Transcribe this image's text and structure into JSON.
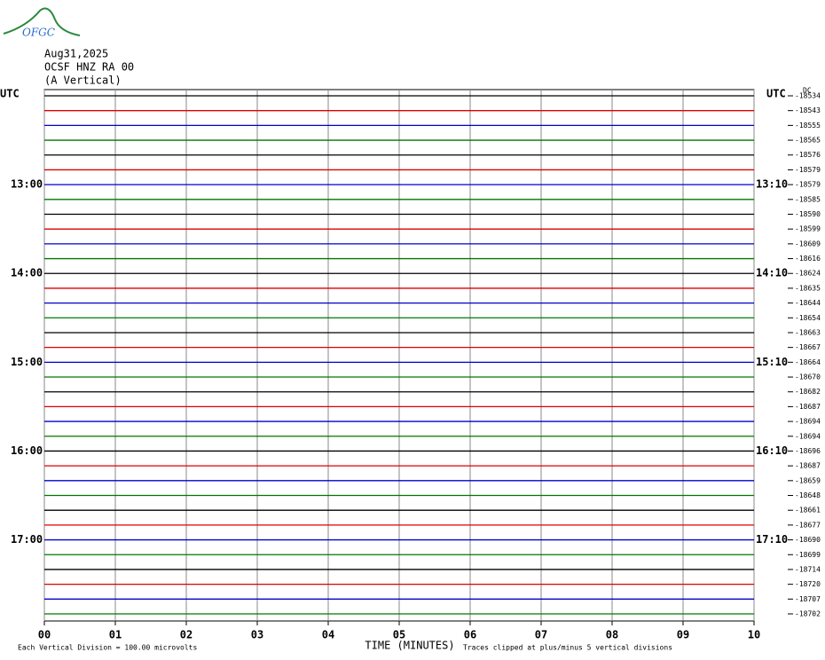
{
  "logo": "OFGC",
  "chart_data": {
    "type": "helicorder",
    "title_lines": [
      "Aug31,2025",
      "OCSF HNZ RA 00",
      "(A Vertical)"
    ],
    "left_header": "UTC",
    "right_header": "UTC",
    "corner_note": "DC",
    "xlabel": "TIME (MINUTES)",
    "xlim": [
      0,
      10
    ],
    "xticks": [
      {
        "value": 0,
        "label": "00"
      },
      {
        "value": 1,
        "label": "01"
      },
      {
        "value": 2,
        "label": "02"
      },
      {
        "value": 3,
        "label": "03"
      },
      {
        "value": 4,
        "label": "04"
      },
      {
        "value": 5,
        "label": "05"
      },
      {
        "value": 6,
        "label": "06"
      },
      {
        "value": 7,
        "label": "07"
      },
      {
        "value": 8,
        "label": "08"
      },
      {
        "value": 9,
        "label": "09"
      },
      {
        "value": 10,
        "label": "10"
      }
    ],
    "grid": true,
    "colors": [
      "#000000",
      "#dd0000",
      "#0000cc",
      "#007700"
    ],
    "left_labels": [
      null,
      null,
      null,
      null,
      null,
      null,
      "13:00",
      null,
      null,
      null,
      null,
      null,
      "14:00",
      null,
      null,
      null,
      null,
      null,
      "15:00",
      null,
      null,
      null,
      null,
      null,
      "16:00",
      null,
      null,
      null,
      null,
      null,
      "17:00",
      null,
      null,
      null,
      null,
      null
    ],
    "right_labels": [
      null,
      null,
      null,
      null,
      null,
      null,
      "13:10",
      null,
      null,
      null,
      null,
      null,
      "14:10",
      null,
      null,
      null,
      null,
      null,
      "15:10",
      null,
      null,
      null,
      null,
      null,
      "16:10",
      null,
      null,
      null,
      null,
      null,
      "17:10",
      null,
      null,
      null,
      null,
      null
    ],
    "offsets": [
      -18534,
      -18543,
      -18555,
      -18565,
      -18576,
      -18579,
      -18579,
      -18585,
      -18590,
      -18599,
      -18609,
      -18616,
      -18624,
      -18635,
      -18644,
      -18654,
      -18663,
      -18667,
      -18664,
      -18670,
      -18682,
      -18687,
      -18694,
      -18694,
      -18696,
      -18687,
      -18659,
      -18648,
      -18661,
      -18677,
      -18690,
      -18699,
      -18714,
      -18720,
      -18707,
      -18702
    ],
    "footer_left": "Each Vertical Division =  100.00 microvolts",
    "footer_right": "Traces clipped at plus/minus 5 vertical divisions"
  }
}
